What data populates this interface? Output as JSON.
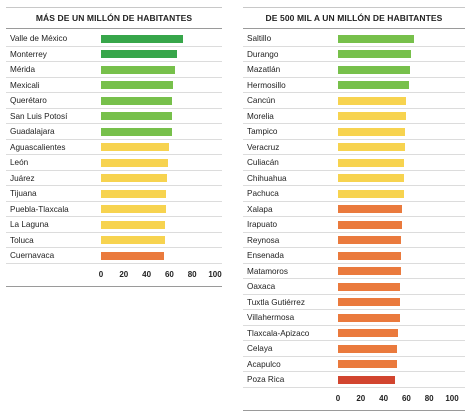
{
  "colors": {
    "dark_green": "#37a64a",
    "green": "#77c04b",
    "yellow": "#f7d34f",
    "orange": "#ea7a3d",
    "red": "#d2452f"
  },
  "chart_data": [
    {
      "type": "bar",
      "orientation": "horizontal",
      "title": "MÁS DE UN MILLÓN DE HABITANTES",
      "xlim": [
        0,
        100
      ],
      "x_ticks": [
        "0",
        "20",
        "40",
        "60",
        "80",
        "100"
      ],
      "grid": false,
      "categories": [
        "Valle de México",
        "Monterrey",
        "Mérida",
        "Mexicali",
        "Querétaro",
        "San Luis Potosí",
        "Guadalajara",
        "Aguascalientes",
        "León",
        "Juárez",
        "Tijuana",
        "Puebla-Tlaxcala",
        "La Laguna",
        "Toluca",
        "Cuernavaca"
      ],
      "values": [
        72,
        67,
        65,
        63,
        62,
        62,
        62,
        60,
        59,
        58,
        57,
        57,
        56,
        56,
        55
      ],
      "bar_colors": [
        "dark_green",
        "dark_green",
        "green",
        "green",
        "green",
        "green",
        "green",
        "yellow",
        "yellow",
        "yellow",
        "yellow",
        "yellow",
        "yellow",
        "yellow",
        "orange"
      ]
    },
    {
      "type": "bar",
      "orientation": "horizontal",
      "title": "DE 500 MIL A UN MILLÓN DE HABITANTES",
      "xlim": [
        0,
        100
      ],
      "x_ticks": [
        "0",
        "20",
        "40",
        "60",
        "80",
        "100"
      ],
      "grid": false,
      "categories": [
        "Saltillo",
        "Durango",
        "Mazatlán",
        "Hermosillo",
        "Cancún",
        "Morelia",
        "Tampico",
        "Veracruz",
        "Culiacán",
        "Chihuahua",
        "Pachuca",
        "Xalapa",
        "Irapuato",
        "Reynosa",
        "Ensenada",
        "Matamoros",
        "Oaxaca",
        "Tuxtla Gutiérrez",
        "Villahermosa",
        "Tlaxcala-Apizaco",
        "Celaya",
        "Acapulco",
        "Poza Rica"
      ],
      "values": [
        67,
        64,
        63,
        62,
        60,
        60,
        59,
        59,
        58,
        58,
        58,
        56,
        56,
        55,
        55,
        55,
        54,
        54,
        54,
        53,
        52,
        52,
        50
      ],
      "bar_colors": [
        "green",
        "green",
        "green",
        "green",
        "yellow",
        "yellow",
        "yellow",
        "yellow",
        "yellow",
        "yellow",
        "yellow",
        "orange",
        "orange",
        "orange",
        "orange",
        "orange",
        "orange",
        "orange",
        "orange",
        "orange",
        "orange",
        "orange",
        "red"
      ]
    }
  ]
}
